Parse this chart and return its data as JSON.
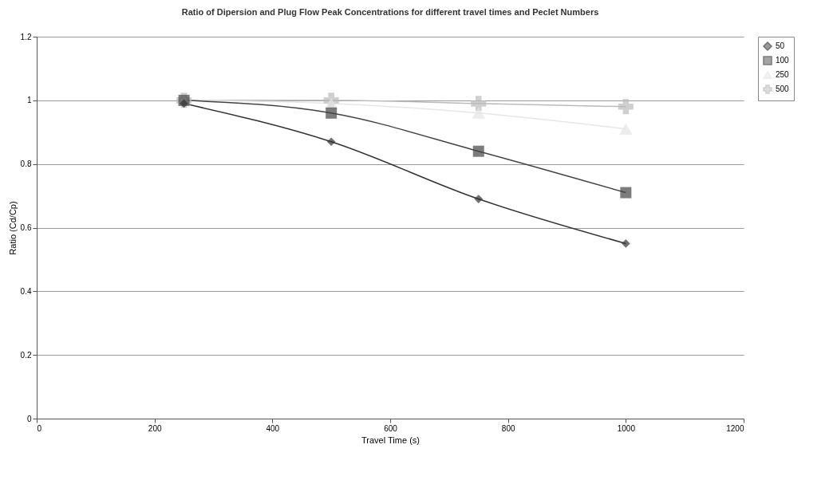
{
  "chart_data": {
    "type": "line",
    "title": "Ratio of Dipersion and Plug Flow Peak Concentrations for different travel times and Peclet Numbers",
    "xlabel": "Travel Time (s)",
    "ylabel": "Ratio (Cd/Cp)",
    "x": [
      250,
      500,
      750,
      1000
    ],
    "series": [
      {
        "name": "50",
        "color": "#333333",
        "marker": "diamond",
        "values": [
          0.99,
          0.87,
          0.69,
          0.55
        ]
      },
      {
        "name": "100",
        "color": "#444444",
        "marker": "square",
        "values": [
          1,
          0.96,
          0.84,
          0.71
        ]
      },
      {
        "name": "250",
        "color": "#e6e6e6",
        "marker": "triangle",
        "values": [
          1,
          0.99,
          0.96,
          0.91
        ]
      },
      {
        "name": "500",
        "color": "#bbbbbb",
        "marker": "cross",
        "values": [
          1,
          1,
          0.99,
          0.98
        ]
      }
    ],
    "xlim": [
      0,
      1200
    ],
    "xticks": [
      0,
      200,
      400,
      600,
      800,
      1000,
      1200
    ],
    "ylim": [
      0,
      1.2
    ],
    "yticks": [
      0,
      0.2,
      0.4,
      0.6,
      0.8,
      1,
      1.2
    ],
    "grid": "y",
    "legend": "right"
  }
}
